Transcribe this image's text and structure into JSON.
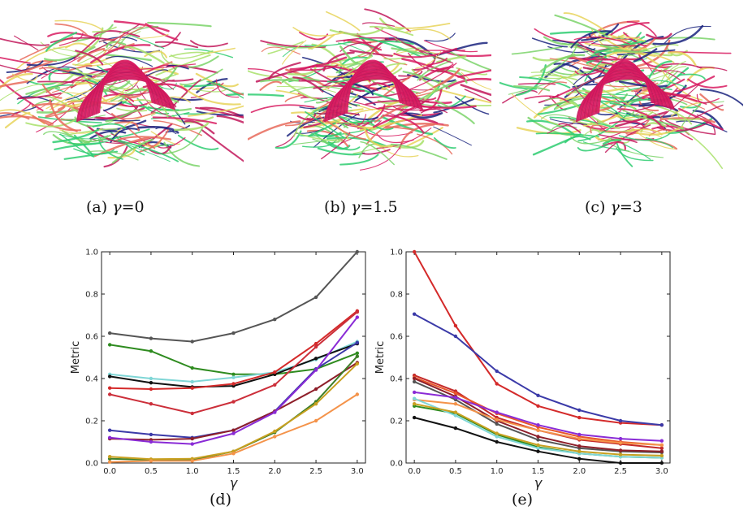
{
  "figure": {
    "panels": [
      {
        "id": "a",
        "caption_prefix": "(a) ",
        "caption_symbol": "γ",
        "caption_value": "=0",
        "image": "tractography-fiber-bundles"
      },
      {
        "id": "b",
        "caption_prefix": "(b) ",
        "caption_symbol": "γ",
        "caption_value": "=1.5",
        "image": "tractography-fiber-bundles"
      },
      {
        "id": "c",
        "caption_prefix": "(c) ",
        "caption_symbol": "γ",
        "caption_value": "=3",
        "image": "tractography-fiber-bundles"
      }
    ],
    "fiber_colors": [
      "#d81b60",
      "#1a237e",
      "#2ecc71",
      "#e7d35a",
      "#e86a5a",
      "#7bd36a",
      "#c2185b",
      "#a8e06a"
    ]
  },
  "chart_data": [
    {
      "id": "d",
      "caption": "(d)",
      "type": "line",
      "xlabel": "γ",
      "ylabel": "Metric",
      "xlim": [
        -0.1,
        3.1
      ],
      "ylim": [
        0.0,
        1.0
      ],
      "xticks": [
        "0.0",
        "0.5",
        "1.0",
        "1.5",
        "2.0",
        "2.5",
        "3.0"
      ],
      "yticks": [
        "0.0",
        "0.2",
        "0.4",
        "0.6",
        "0.8",
        "1.0"
      ],
      "x": [
        0,
        0.5,
        1,
        1.5,
        2,
        2.5,
        3
      ],
      "series": [
        {
          "color": "#555555",
          "values": [
            0.615,
            0.59,
            0.575,
            0.615,
            0.68,
            0.785,
            1.0
          ]
        },
        {
          "color": "#2e8b1f",
          "values": [
            0.56,
            0.53,
            0.45,
            0.42,
            0.42,
            0.445,
            0.52
          ]
        },
        {
          "color": "#7fd6d6",
          "values": [
            0.42,
            0.4,
            0.385,
            0.405,
            0.43,
            0.49,
            0.575
          ]
        },
        {
          "color": "#111111",
          "values": [
            0.41,
            0.38,
            0.36,
            0.365,
            0.42,
            0.495,
            0.565
          ]
        },
        {
          "color": "#d42a2a",
          "values": [
            0.355,
            0.35,
            0.355,
            0.375,
            0.43,
            0.565,
            0.72
          ]
        },
        {
          "color": "#cc2f3a",
          "values": [
            0.325,
            0.28,
            0.235,
            0.29,
            0.37,
            0.55,
            0.715
          ]
        },
        {
          "color": "#3b3aa8",
          "values": [
            0.155,
            0.135,
            0.12,
            0.155,
            0.245,
            0.445,
            0.57
          ]
        },
        {
          "color": "#8e1f2a",
          "values": [
            0.115,
            0.11,
            0.115,
            0.155,
            0.245,
            0.35,
            0.475
          ]
        },
        {
          "color": "#8a2bd6",
          "values": [
            0.12,
            0.1,
            0.09,
            0.14,
            0.24,
            0.44,
            0.69
          ]
        },
        {
          "color": "#3d7f28",
          "values": [
            0.02,
            0.015,
            0.015,
            0.055,
            0.145,
            0.29,
            0.505
          ]
        },
        {
          "color": "#c8a020",
          "values": [
            0.03,
            0.018,
            0.02,
            0.055,
            0.15,
            0.28,
            0.47
          ]
        },
        {
          "color": "#f4934a",
          "values": [
            0.005,
            0.01,
            0.01,
            0.045,
            0.125,
            0.2,
            0.325
          ]
        }
      ]
    },
    {
      "id": "e",
      "caption": "(e)",
      "type": "line",
      "xlabel": "γ",
      "ylabel": "Metric",
      "xlim": [
        -0.1,
        3.1
      ],
      "ylim": [
        0.0,
        1.0
      ],
      "xticks": [
        "0.0",
        "0.5",
        "1.0",
        "1.5",
        "2.0",
        "2.5",
        "3.0"
      ],
      "yticks": [
        "0.0",
        "0.2",
        "0.4",
        "0.6",
        "0.8",
        "1.0"
      ],
      "x": [
        0,
        0.5,
        1,
        1.5,
        2,
        2.5,
        3
      ],
      "series": [
        {
          "color": "#d42a2a",
          "values": [
            1.0,
            0.65,
            0.375,
            0.27,
            0.215,
            0.19,
            0.18
          ]
        },
        {
          "color": "#3b3aa8",
          "values": [
            0.705,
            0.6,
            0.435,
            0.32,
            0.25,
            0.2,
            0.18
          ]
        },
        {
          "color": "#c42a2a",
          "values": [
            0.415,
            0.34,
            0.215,
            0.155,
            0.11,
            0.09,
            0.07
          ]
        },
        {
          "color": "#e8562a",
          "values": [
            0.405,
            0.33,
            0.235,
            0.17,
            0.125,
            0.1,
            0.085
          ]
        },
        {
          "color": "#555555",
          "values": [
            0.385,
            0.3,
            0.185,
            0.11,
            0.07,
            0.055,
            0.05
          ]
        },
        {
          "color": "#8e1f2a",
          "values": [
            0.4,
            0.315,
            0.2,
            0.125,
            0.08,
            0.06,
            0.055
          ]
        },
        {
          "color": "#8a2bd6",
          "values": [
            0.335,
            0.31,
            0.24,
            0.18,
            0.135,
            0.115,
            0.105
          ]
        },
        {
          "color": "#f4934a",
          "values": [
            0.3,
            0.28,
            0.205,
            0.155,
            0.115,
            0.095,
            0.085
          ]
        },
        {
          "color": "#2e8b1f",
          "values": [
            0.27,
            0.235,
            0.135,
            0.075,
            0.045,
            0.03,
            0.025
          ]
        },
        {
          "color": "#7fd6d6",
          "values": [
            0.305,
            0.225,
            0.125,
            0.07,
            0.045,
            0.03,
            0.025
          ]
        },
        {
          "color": "#c8a020",
          "values": [
            0.28,
            0.24,
            0.14,
            0.085,
            0.055,
            0.04,
            0.035
          ]
        },
        {
          "color": "#111111",
          "values": [
            0.215,
            0.165,
            0.1,
            0.055,
            0.02,
            0.0,
            0.0
          ]
        }
      ]
    }
  ]
}
